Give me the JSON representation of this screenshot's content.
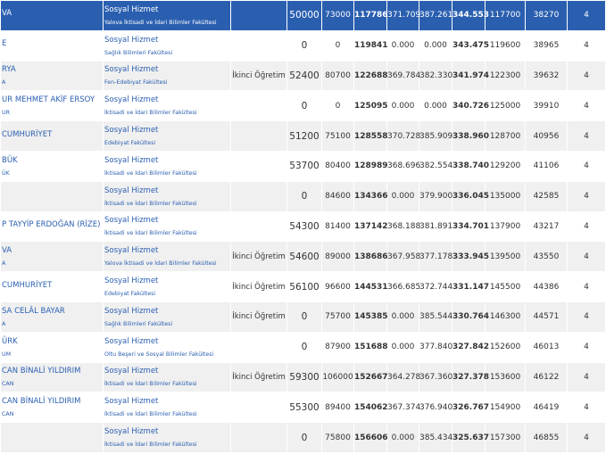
{
  "rows": [
    {
      "univ": "VA",
      "city": "",
      "faculty": "Sosyal Hizmet",
      "faculty_sub": "Yalova İktisadi ve İdari Bilimler Fakültesi",
      "type": "",
      "q1": "50000",
      "q2": "73000",
      "rank": "117786",
      "p1": "371.709",
      "p2": "387.261",
      "p3": "344.553",
      "r2": "117700",
      "r3": "38270",
      "years": "4"
    },
    {
      "univ": "E",
      "city": "",
      "faculty": "Sosyal Hizmet",
      "faculty_sub": "Sağlık Bilimleri Fakültesi",
      "type": "",
      "q1": "0",
      "q2": "0",
      "rank": "119841",
      "p1": "0.000",
      "p2": "0.000",
      "p3": "343.475",
      "r2": "119600",
      "r3": "38965",
      "years": "4"
    },
    {
      "univ": "RYA",
      "city": "A",
      "faculty": "Sosyal Hizmet",
      "faculty_sub": "Fen-Edebiyat Fakültesi",
      "type": "İkinci Öğretim",
      "q1": "52400",
      "q2": "80700",
      "rank": "122688",
      "p1": "369.784",
      "p2": "382.330",
      "p3": "341.974",
      "r2": "122300",
      "r3": "39632",
      "years": "4"
    },
    {
      "univ": "UR MEHMET AKİF ERSOY",
      "city": "UR",
      "faculty": "Sosyal Hizmet",
      "faculty_sub": "İktisadi ve İdari Bilimler Fakültesi",
      "type": "",
      "q1": "0",
      "q2": "0",
      "rank": "125095",
      "p1": "0.000",
      "p2": "0.000",
      "p3": "340.726",
      "r2": "125000",
      "r3": "39910",
      "years": "4"
    },
    {
      "univ": "CUMHURİYET",
      "city": "",
      "faculty": "Sosyal Hizmet",
      "faculty_sub": "Edebiyat Fakültesi",
      "type": "",
      "q1": "51200",
      "q2": "75100",
      "rank": "128558",
      "p1": "370.728",
      "p2": "385.909",
      "p3": "338.960",
      "r2": "128700",
      "r3": "40956",
      "years": "4"
    },
    {
      "univ": "BÜK",
      "city": "ÜK",
      "faculty": "Sosyal Hizmet",
      "faculty_sub": "İktisadi ve İdari Bilimler Fakültesi",
      "type": "",
      "q1": "53700",
      "q2": "80400",
      "rank": "128989",
      "p1": "368.696",
      "p2": "382.554",
      "p3": "338.740",
      "r2": "129200",
      "r3": "41106",
      "years": "4"
    },
    {
      "univ": "",
      "city": "",
      "faculty": "Sosyal Hizmet",
      "faculty_sub": "İktisadi ve İdari Bilimler Fakültesi",
      "type": "",
      "q1": "0",
      "q2": "84600",
      "rank": "134366",
      "p1": "0.000",
      "p2": "379.900",
      "p3": "336.045",
      "r2": "135000",
      "r3": "42585",
      "years": "4"
    },
    {
      "univ": "P TAYYİP ERDOĞAN (RİZE)",
      "city": "",
      "faculty": "Sosyal Hizmet",
      "faculty_sub": "İktisadi ve İdari Bilimler Fakültesi",
      "type": "",
      "q1": "54300",
      "q2": "81400",
      "rank": "137142",
      "p1": "368.188",
      "p2": "381.891",
      "p3": "334.701",
      "r2": "137900",
      "r3": "43217",
      "years": "4"
    },
    {
      "univ": "VA",
      "city": "A",
      "faculty": "Sosyal Hizmet",
      "faculty_sub": "Yalova İktisadi ve İdari Bilimler Fakültesi",
      "type": "İkinci Öğretim",
      "q1": "54600",
      "q2": "89000",
      "rank": "138686",
      "p1": "367.958",
      "p2": "377.178",
      "p3": "333.945",
      "r2": "139500",
      "r3": "43550",
      "years": "4"
    },
    {
      "univ": "CUMHURİYET",
      "city": "",
      "faculty": "Sosyal Hizmet",
      "faculty_sub": "Edebiyat Fakültesi",
      "type": "İkinci Öğretim",
      "q1": "56100",
      "q2": "96600",
      "rank": "144531",
      "p1": "366.685",
      "p2": "372.744",
      "p3": "331.147",
      "r2": "145500",
      "r3": "44386",
      "years": "4"
    },
    {
      "univ": "SA CELÂL BAYAR",
      "city": "A",
      "faculty": "Sosyal Hizmet",
      "faculty_sub": "Sağlık Bilimleri Fakültesi",
      "type": "İkinci Öğretim",
      "q1": "0",
      "q2": "75700",
      "rank": "145385",
      "p1": "0.000",
      "p2": "385.544",
      "p3": "330.764",
      "r2": "146300",
      "r3": "44571",
      "years": "4"
    },
    {
      "univ": "ÜRK",
      "city": "UM",
      "faculty": "Sosyal Hizmet",
      "faculty_sub": "Oltu Beşeri ve Sosyal Bilimler Fakültesi",
      "type": "",
      "q1": "0",
      "q2": "87900",
      "rank": "151688",
      "p1": "0.000",
      "p2": "377.840",
      "p3": "327.842",
      "r2": "152600",
      "r3": "46013",
      "years": "4"
    },
    {
      "univ": "CAN BİNALİ YILDIRIM",
      "city": "CAN",
      "faculty": "Sosyal Hizmet",
      "faculty_sub": "İktisadi ve İdari Bilimler Fakültesi",
      "type": "İkinci Öğretim",
      "q1": "59300",
      "q2": "106000",
      "rank": "152667",
      "p1": "364.278",
      "p2": "367.360",
      "p3": "327.378",
      "r2": "153600",
      "r3": "46122",
      "years": "4"
    },
    {
      "univ": "CAN BİNALİ YILDIRIM",
      "city": "CAN",
      "faculty": "Sosyal Hizmet",
      "faculty_sub": "İktisadi ve İdari Bilimler Fakültesi",
      "type": "",
      "q1": "55300",
      "q2": "89400",
      "rank": "154062",
      "p1": "367.374",
      "p2": "376.940",
      "p3": "326.767",
      "r2": "154900",
      "r3": "46419",
      "years": "4"
    },
    {
      "univ": "",
      "city": "",
      "faculty": "Sosyal Hizmet",
      "faculty_sub": "İktisadi ve İdari Bilimler Fakültesi",
      "type": "",
      "q1": "0",
      "q2": "75800",
      "rank": "156606",
      "p1": "0.000",
      "p2": "385.434",
      "p3": "325.637",
      "r2": "157300",
      "r3": "46855",
      "years": "4"
    }
  ]
}
